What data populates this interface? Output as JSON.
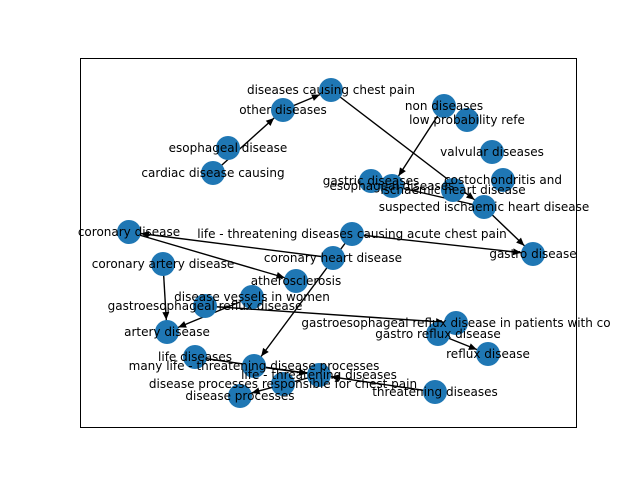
{
  "graph": {
    "node_color": "#1f77b4",
    "edge_color": "#000000",
    "nodes": [
      {
        "id": "n1",
        "label": "diseases causing chest pain"
      },
      {
        "id": "n2",
        "label": "non diseases"
      },
      {
        "id": "n3",
        "label": "other diseases"
      },
      {
        "id": "n4",
        "label": "cardiac disease causing"
      },
      {
        "id": "n5",
        "label": "valvular diseases"
      },
      {
        "id": "n6",
        "label": "gastric diseases"
      },
      {
        "id": "n7",
        "label": "esophageal diseases"
      },
      {
        "id": "n8",
        "label": "suspected ischaemic heart disease"
      },
      {
        "id": "n9",
        "label": "life - threatening diseases causing acute chest pain"
      },
      {
        "id": "n10",
        "label": "gastro disease"
      },
      {
        "id": "n11",
        "label": "coronary heart disease"
      },
      {
        "id": "n12",
        "label": "coronary disease"
      },
      {
        "id": "n13",
        "label": "atherosclerosis"
      },
      {
        "id": "n14",
        "label": "gastroesophageal reflux disease"
      },
      {
        "id": "n15",
        "label": "gastroesophageal reflux disease in patients with co"
      },
      {
        "id": "n16",
        "label": "gastro reflux disease"
      },
      {
        "id": "n17",
        "label": "reflux disease"
      },
      {
        "id": "n18",
        "label": "artery disease"
      },
      {
        "id": "n19",
        "label": "life diseases"
      },
      {
        "id": "n20",
        "label": "many life - threatening disease processes"
      },
      {
        "id": "n21",
        "label": "life - threatening diseases"
      },
      {
        "id": "n22",
        "label": "disease processes responsible for chest pain"
      },
      {
        "id": "n23",
        "label": "disease processes"
      },
      {
        "id": "n24",
        "label": "threatening diseases"
      },
      {
        "id": "n25",
        "label": "coronary artery disease"
      },
      {
        "id": "n26",
        "label": "disease vessels in women"
      },
      {
        "id": "n27",
        "label": "ischaemic heart disease"
      },
      {
        "id": "n28",
        "label": "costochondritis and"
      },
      {
        "id": "n29",
        "label": "esophageal disease"
      },
      {
        "id": "n30",
        "label": "low probability refe"
      }
    ],
    "edges": [
      {
        "from": "n3",
        "to": "n1"
      },
      {
        "from": "n1",
        "to": "n8"
      },
      {
        "from": "n4",
        "to": "n3"
      },
      {
        "from": "n9",
        "to": "n10"
      },
      {
        "from": "n8",
        "to": "n10"
      },
      {
        "from": "n11",
        "to": "n12"
      },
      {
        "from": "n25",
        "to": "n18"
      },
      {
        "from": "n20",
        "to": "n21"
      },
      {
        "from": "n19",
        "to": "n21"
      },
      {
        "from": "n21",
        "to": "n23"
      },
      {
        "from": "n6",
        "to": "n7"
      },
      {
        "from": "n8",
        "to": "n6"
      },
      {
        "from": "n14",
        "to": "n15"
      },
      {
        "from": "n2",
        "to": "n7"
      },
      {
        "from": "n9",
        "to": "n20"
      },
      {
        "from": "n16",
        "to": "n17"
      },
      {
        "from": "n24",
        "to": "n21"
      },
      {
        "from": "n12",
        "to": "n13"
      },
      {
        "from": "n26",
        "to": "n18"
      }
    ]
  }
}
